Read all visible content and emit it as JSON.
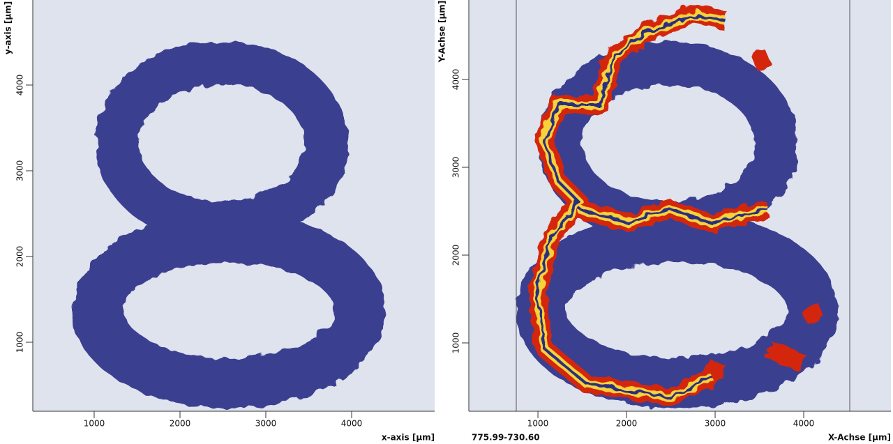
{
  "chart_data": [
    {
      "type": "image",
      "xlabel": "x-axis [µm]",
      "ylabel": "y-axis [µm]",
      "xlim": [
        285,
        4967
      ],
      "ylim": [
        195,
        4992
      ],
      "xticks": [
        1000,
        2000,
        3000,
        4000
      ],
      "yticks": [
        1000,
        2000,
        3000,
        4000
      ]
    },
    {
      "type": "image",
      "xlabel": "X-Achse [µm]",
      "ylabel": "Y-Achse [µm]",
      "annotation": "775.99-730.60",
      "xlim": [
        220,
        4984
      ],
      "ylim": [
        222,
        4905
      ],
      "xticks": [
        1000,
        2000,
        3000,
        4000
      ],
      "yticks": [
        1000,
        2000,
        3000,
        4000
      ]
    }
  ]
}
